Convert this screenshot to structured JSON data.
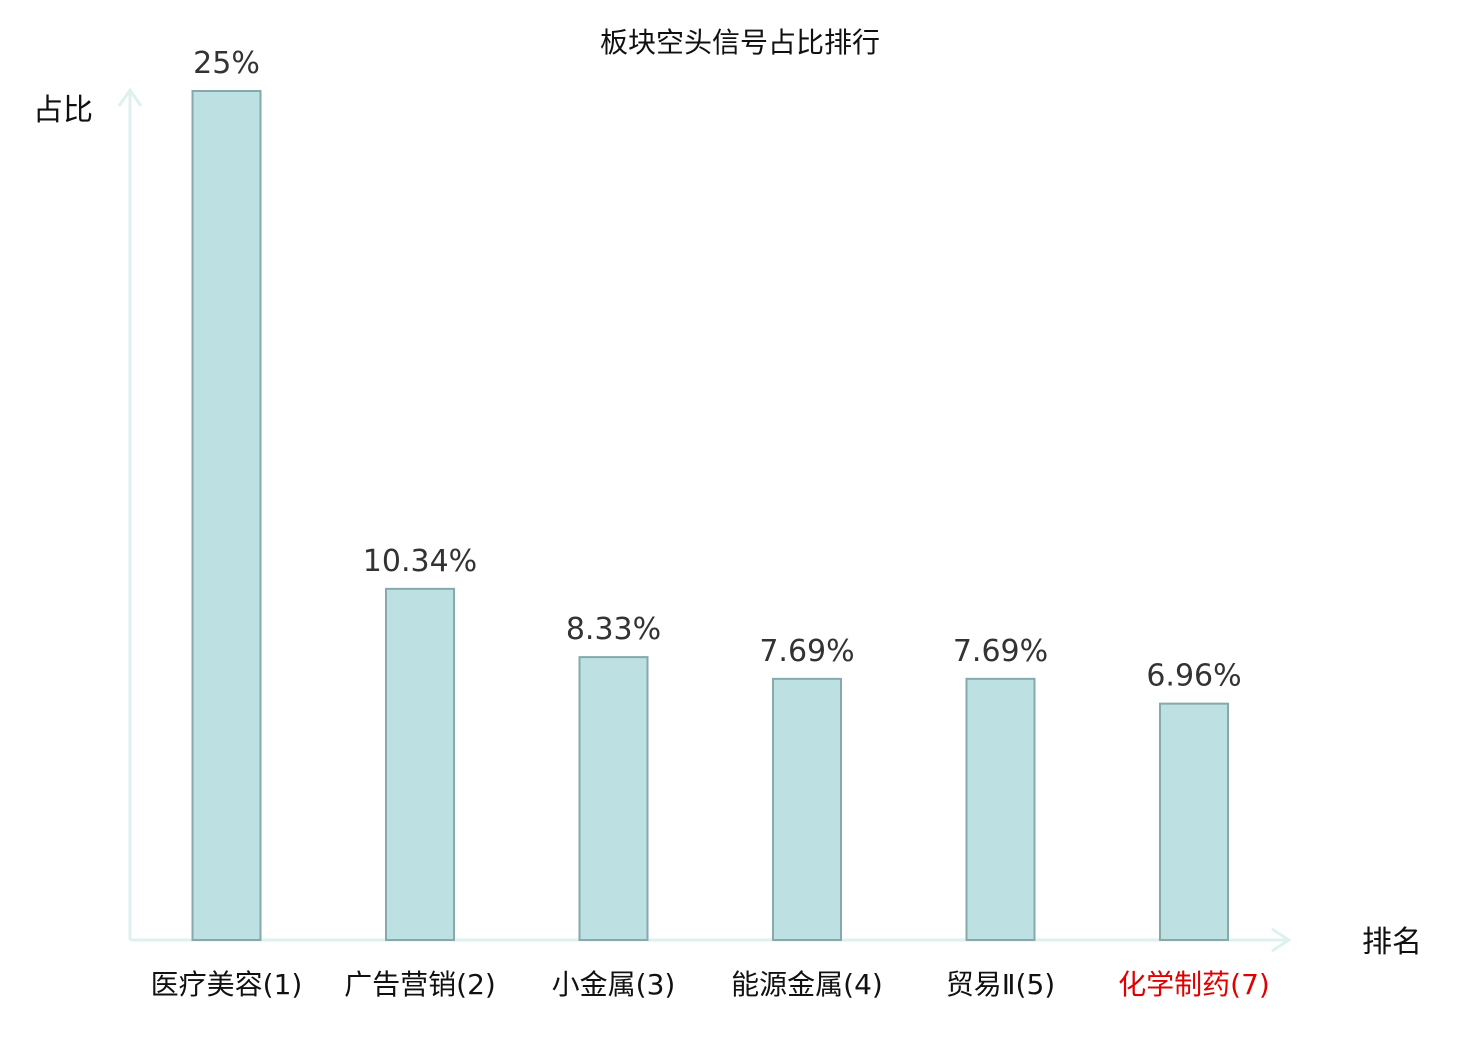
{
  "chart_data": {
    "type": "bar",
    "title": "板块空头信号占比排行",
    "ylabel": "占比",
    "xlabel": "排名",
    "categories": [
      "医疗美容(1)",
      "广告营销(2)",
      "小金属(3)",
      "能源金属(4)",
      "贸易Ⅱ(5)",
      "化学制药(7)"
    ],
    "values": [
      25,
      10.34,
      8.33,
      7.69,
      7.69,
      6.96
    ],
    "value_labels": [
      "25%",
      "10.34%",
      "8.33%",
      "7.69%",
      "7.69%",
      "6.96%"
    ],
    "ylim": [
      0,
      25
    ],
    "grid": false,
    "highlight_index": 5
  },
  "colors": {
    "bar_fill": "#bde0e3",
    "bar_stroke": "#86a9ac",
    "axis": "#dff1ef",
    "category_text": "#111111",
    "highlight_text": "#e00000"
  }
}
